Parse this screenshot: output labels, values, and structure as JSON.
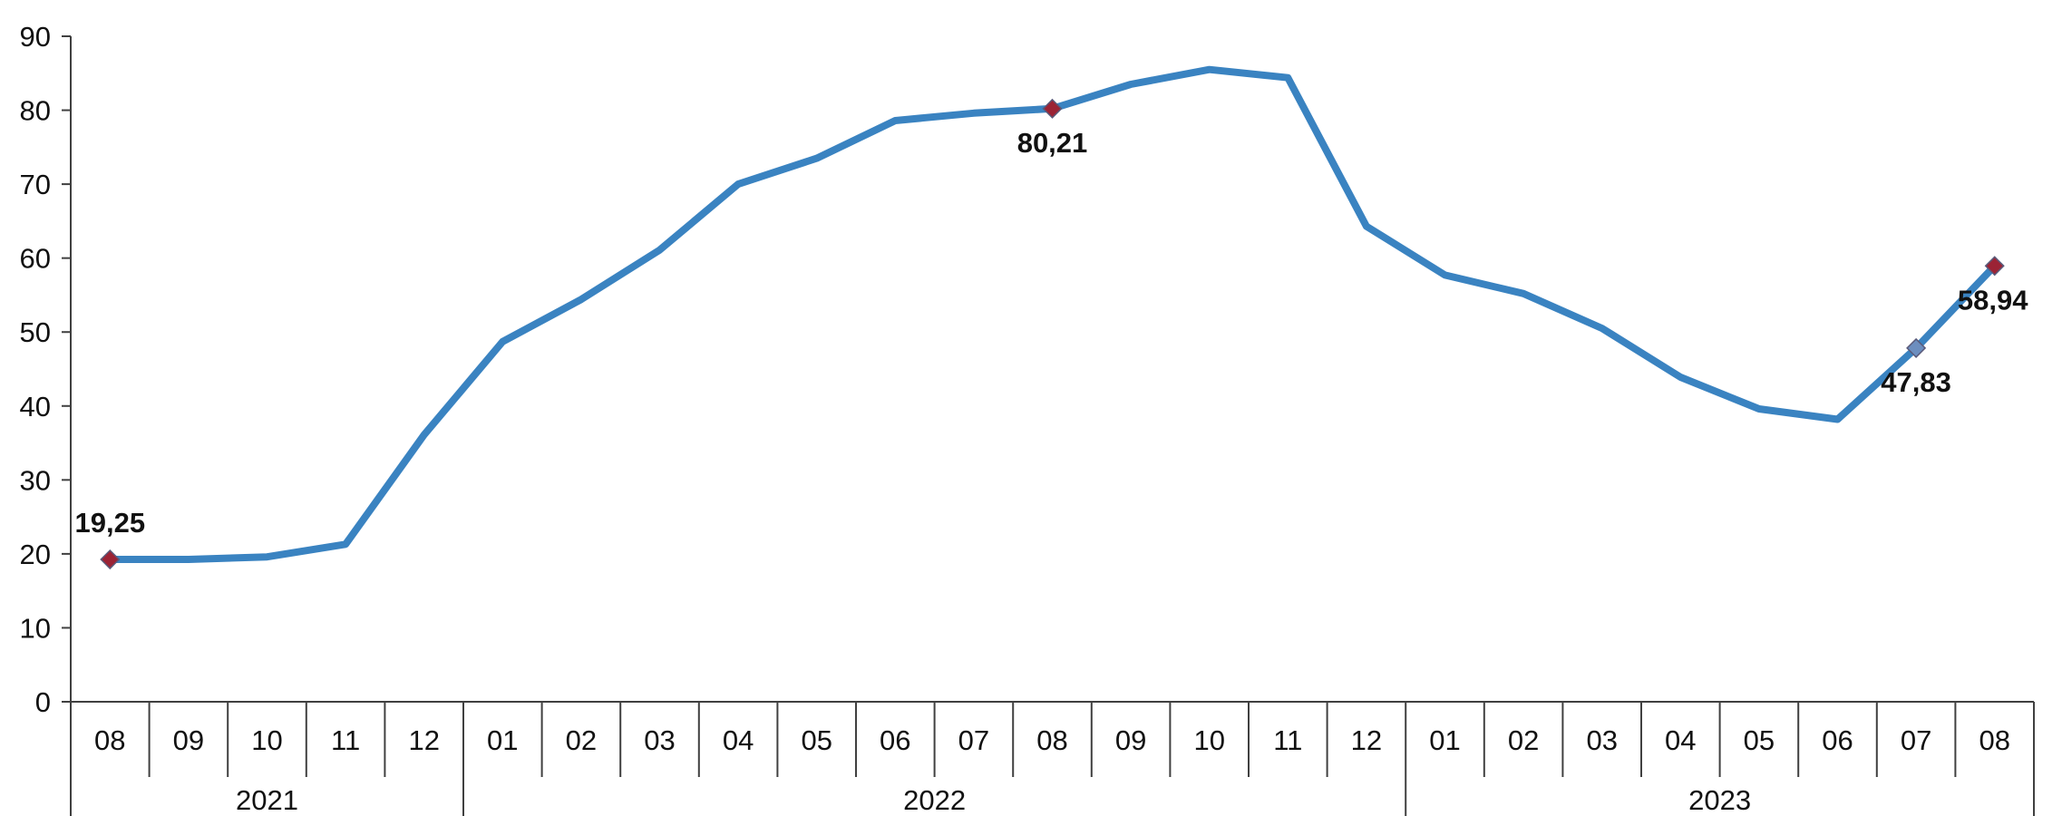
{
  "chart_data": {
    "type": "line",
    "title": "",
    "xlabel": "",
    "ylabel": "",
    "ylim": [
      0,
      90
    ],
    "y_ticks": [
      "0",
      "10",
      "20",
      "30",
      "40",
      "50",
      "60",
      "70",
      "80",
      "90"
    ],
    "grid": false,
    "legend": "none",
    "categories": [
      "08",
      "09",
      "10",
      "11",
      "12",
      "01",
      "02",
      "03",
      "04",
      "05",
      "06",
      "07",
      "08",
      "09",
      "10",
      "11",
      "12",
      "01",
      "02",
      "03",
      "04",
      "05",
      "06",
      "07",
      "08"
    ],
    "year_groups": [
      {
        "label": "2021",
        "start": 0,
        "end": 4
      },
      {
        "label": "2022",
        "start": 5,
        "end": 16
      },
      {
        "label": "2023",
        "start": 17,
        "end": 24
      }
    ],
    "series": [
      {
        "color": "#3A83C1",
        "values": [
          19.25,
          19.25,
          19.6,
          21.3,
          36.1,
          48.7,
          54.4,
          61.1,
          70.0,
          73.5,
          78.6,
          79.6,
          80.21,
          83.5,
          85.5,
          84.4,
          64.3,
          57.7,
          55.2,
          50.5,
          43.9,
          39.6,
          38.2,
          47.83,
          58.94
        ]
      }
    ],
    "annotations": [
      {
        "index": 0,
        "text": "19,25",
        "marker_color": "#9B2335",
        "position": "above"
      },
      {
        "index": 12,
        "text": "80,21",
        "marker_color": "#9B2335",
        "position": "below"
      },
      {
        "index": 23,
        "text": "47,83",
        "marker_color": "#6C8EBF",
        "position": "below"
      },
      {
        "index": 24,
        "text": "58,94",
        "marker_color": "#9B2335",
        "position": "below"
      }
    ]
  }
}
